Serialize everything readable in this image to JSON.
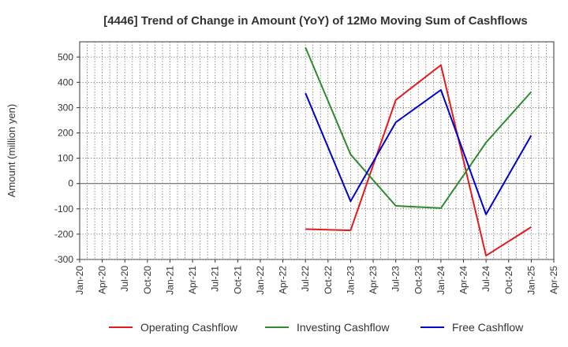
{
  "chart_data": {
    "type": "line",
    "title": "[4446]  Trend of Change in Amount (YoY) of 12Mo Moving Sum of Cashflows",
    "xlabel": "",
    "ylabel": "Amount (million yen)",
    "ylim": [
      -300,
      560
    ],
    "yticks": [
      -300,
      -200,
      -100,
      0,
      100,
      200,
      300,
      400,
      500
    ],
    "grid": true,
    "legend_position": "bottom",
    "categories": [
      "Jan-20",
      "Apr-20",
      "Jul-20",
      "Oct-20",
      "Jan-21",
      "Apr-21",
      "Jul-21",
      "Oct-21",
      "Jan-22",
      "Apr-22",
      "Jul-22",
      "Oct-22",
      "Jan-23",
      "Apr-23",
      "Jul-23",
      "Oct-23",
      "Jan-24",
      "Apr-24",
      "Jul-24",
      "Oct-24",
      "Jan-25",
      "Apr-25"
    ],
    "series": [
      {
        "name": "Operating Cashflow",
        "color": "#e41a1c",
        "points": [
          {
            "x": "Jul-22",
            "y": -180
          },
          {
            "x": "Jan-23",
            "y": -185
          },
          {
            "x": "Jul-23",
            "y": 330
          },
          {
            "x": "Jan-24",
            "y": 468
          },
          {
            "x": "Jul-24",
            "y": -285
          },
          {
            "x": "Jan-25",
            "y": -172
          }
        ]
      },
      {
        "name": "Investing Cashflow",
        "color": "#2e8b2e",
        "points": [
          {
            "x": "Jul-22",
            "y": 538
          },
          {
            "x": "Jan-23",
            "y": 115
          },
          {
            "x": "Jul-23",
            "y": -88
          },
          {
            "x": "Jan-24",
            "y": -97
          },
          {
            "x": "Jul-24",
            "y": 162
          },
          {
            "x": "Jan-25",
            "y": 362
          }
        ]
      },
      {
        "name": "Free Cashflow",
        "color": "#0000cc",
        "points": [
          {
            "x": "Jul-22",
            "y": 357
          },
          {
            "x": "Jan-23",
            "y": -70
          },
          {
            "x": "Jul-23",
            "y": 242
          },
          {
            "x": "Jan-24",
            "y": 370
          },
          {
            "x": "Jul-24",
            "y": -122
          },
          {
            "x": "Jan-25",
            "y": 190
          }
        ]
      }
    ]
  }
}
